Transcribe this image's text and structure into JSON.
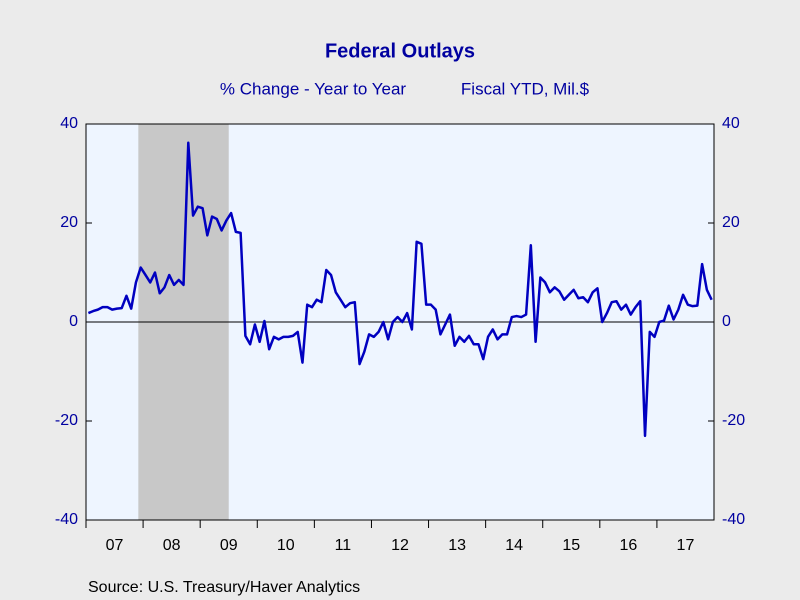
{
  "chart_data": {
    "type": "line",
    "title": "Federal Outlays",
    "subtitle": "% Change - Year to Year",
    "y_label": "Fiscal YTD, Mil.$",
    "source": "Source:  U.S. Treasury/Haver Analytics",
    "x": [
      "2007-01",
      "2007-02",
      "2007-03",
      "2007-04",
      "2007-05",
      "2007-06",
      "2007-07",
      "2007-08",
      "2007-09",
      "2007-10",
      "2007-11",
      "2007-12",
      "2008-01",
      "2008-02",
      "2008-03",
      "2008-04",
      "2008-05",
      "2008-06",
      "2008-07",
      "2008-08",
      "2008-09",
      "2008-10",
      "2008-11",
      "2008-12",
      "2009-01",
      "2009-02",
      "2009-03",
      "2009-04",
      "2009-05",
      "2009-06",
      "2009-07",
      "2009-08",
      "2009-09",
      "2009-10",
      "2009-11",
      "2009-12",
      "2010-01",
      "2010-02",
      "2010-03",
      "2010-04",
      "2010-05",
      "2010-06",
      "2010-07",
      "2010-08",
      "2010-09",
      "2010-10",
      "2010-11",
      "2010-12",
      "2011-01",
      "2011-02",
      "2011-03",
      "2011-04",
      "2011-05",
      "2011-06",
      "2011-07",
      "2011-08",
      "2011-09",
      "2011-10",
      "2011-11",
      "2011-12",
      "2012-01",
      "2012-02",
      "2012-03",
      "2012-04",
      "2012-05",
      "2012-06",
      "2012-07",
      "2012-08",
      "2012-09",
      "2012-10",
      "2012-11",
      "2012-12",
      "2013-01",
      "2013-02",
      "2013-03",
      "2013-04",
      "2013-05",
      "2013-06",
      "2013-07",
      "2013-08",
      "2013-09",
      "2013-10",
      "2013-11",
      "2013-12",
      "2014-01",
      "2014-02",
      "2014-03",
      "2014-04",
      "2014-05",
      "2014-06",
      "2014-07",
      "2014-08",
      "2014-09",
      "2014-10",
      "2014-11",
      "2014-12",
      "2015-01",
      "2015-02",
      "2015-03",
      "2015-04",
      "2015-05",
      "2015-06",
      "2015-07",
      "2015-08",
      "2015-09",
      "2015-10",
      "2015-11",
      "2015-12",
      "2016-01",
      "2016-02",
      "2016-03",
      "2016-04",
      "2016-05",
      "2016-06",
      "2016-07",
      "2016-08",
      "2016-09",
      "2016-10",
      "2016-11",
      "2016-12",
      "2017-01",
      "2017-02",
      "2017-03",
      "2017-04",
      "2017-05",
      "2017-06",
      "2017-07",
      "2017-08",
      "2017-09",
      "2017-10",
      "2017-11",
      "2017-12"
    ],
    "series": [
      {
        "color": "#0000c0",
        "values": [
          1.8,
          2.2,
          2.5,
          3.0,
          3.0,
          2.5,
          2.7,
          2.8,
          5.3,
          2.7,
          8.0,
          11.0,
          9.5,
          8.0,
          10.0,
          5.8,
          7.0,
          9.5,
          7.5,
          8.5,
          7.5,
          36.2,
          21.5,
          23.3,
          23.0,
          17.5,
          21.3,
          20.8,
          18.5,
          20.5,
          22.0,
          18.2,
          18.0,
          -2.8,
          -4.5,
          -0.5,
          -4.0,
          0.2,
          -5.5,
          -3.0,
          -3.5,
          -3.0,
          -3.0,
          -2.8,
          -2.0,
          -8.2,
          3.5,
          3.0,
          4.5,
          4.0,
          10.5,
          9.5,
          6.0,
          4.5,
          3.0,
          3.8,
          4.0,
          -8.5,
          -6.0,
          -2.5,
          -3.0,
          -2.0,
          0.0,
          -3.5,
          0.0,
          1.0,
          0.0,
          1.8,
          -1.5,
          16.2,
          15.8,
          3.5,
          3.5,
          2.5,
          -2.5,
          -0.5,
          1.5,
          -4.8,
          -3.0,
          -4.0,
          -2.8,
          -4.5,
          -4.5,
          -7.5,
          -3.0,
          -1.5,
          -3.5,
          -2.5,
          -2.5,
          1.0,
          1.2,
          1.0,
          1.5,
          15.5,
          -4.0,
          9.0,
          8.0,
          6.0,
          7.0,
          6.2,
          4.5,
          5.5,
          6.5,
          4.8,
          5.0,
          4.0,
          6.0,
          6.8,
          0.0,
          1.8,
          4.0,
          4.2,
          2.5,
          3.5,
          1.5,
          3.0,
          4.2,
          -23.0,
          -2.0,
          -3.0,
          0.0,
          0.3,
          3.3,
          0.5,
          2.5,
          5.5,
          3.5,
          3.2,
          3.3,
          11.7,
          6.5,
          4.5
        ]
      }
    ],
    "xlim": [
      "2007-01",
      "2018-01"
    ],
    "xticks": [
      {
        "value": "2007-01",
        "label": "07"
      },
      {
        "value": "2008-01",
        "label": "08"
      },
      {
        "value": "2009-01",
        "label": "09"
      },
      {
        "value": "2010-01",
        "label": "10"
      },
      {
        "value": "2011-01",
        "label": "11"
      },
      {
        "value": "2012-01",
        "label": "12"
      },
      {
        "value": "2013-01",
        "label": "13"
      },
      {
        "value": "2014-01",
        "label": "14"
      },
      {
        "value": "2015-01",
        "label": "15"
      },
      {
        "value": "2016-01",
        "label": "16"
      },
      {
        "value": "2017-01",
        "label": "17"
      }
    ],
    "ylim": [
      -40,
      40
    ],
    "yticks": [
      -40,
      -20,
      0,
      20,
      40
    ],
    "y2lim": [
      -40,
      40
    ],
    "y2ticks": [
      -40,
      -20,
      0,
      20,
      40
    ],
    "shading": [
      [
        "2007-12",
        "2009-06"
      ]
    ],
    "shading_color": "#c8c8c8",
    "zero_line": true
  }
}
